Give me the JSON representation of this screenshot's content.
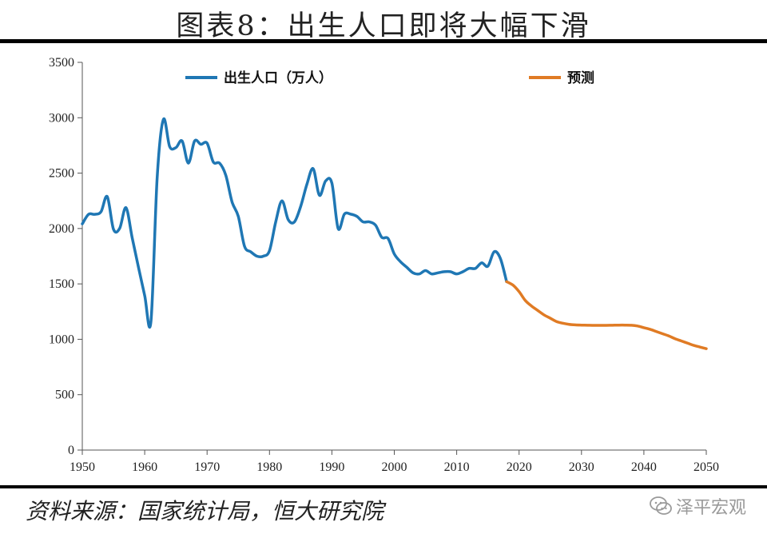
{
  "title": "图表8：出生人口即将大幅下滑",
  "footer": "资料来源：国家统计局，恒大研究院",
  "watermark": "泽平宏观",
  "colors": {
    "actual": "#1f77b4",
    "forecast": "#e07b24"
  },
  "chart_data": {
    "type": "line",
    "title": "图表8：出生人口即将大幅下滑",
    "xlim": [
      1950,
      2050
    ],
    "ylim": [
      0,
      3500
    ],
    "xticks": [
      1950,
      1960,
      1970,
      1980,
      1990,
      2000,
      2010,
      2020,
      2030,
      2040,
      2050
    ],
    "yticks": [
      0,
      500,
      1000,
      1500,
      2000,
      2500,
      3000,
      3500
    ],
    "grid": false,
    "legend_position": "top",
    "series": [
      {
        "name": "出生人口（万人）",
        "color": "#1f77b4",
        "x": [
          1950,
          1951,
          1952,
          1953,
          1954,
          1955,
          1956,
          1957,
          1958,
          1959,
          1960,
          1961,
          1962,
          1963,
          1964,
          1965,
          1966,
          1967,
          1968,
          1969,
          1970,
          1971,
          1972,
          1973,
          1974,
          1975,
          1976,
          1977,
          1978,
          1979,
          1980,
          1981,
          1982,
          1983,
          1984,
          1985,
          1986,
          1987,
          1988,
          1989,
          1990,
          1991,
          1992,
          1993,
          1994,
          1995,
          1996,
          1997,
          1998,
          1999,
          2000,
          2001,
          2002,
          2003,
          2004,
          2005,
          2006,
          2007,
          2008,
          2009,
          2010,
          2011,
          2012,
          2013,
          2014,
          2015,
          2016,
          2017,
          2018
        ],
        "y": [
          2042,
          2128,
          2128,
          2151,
          2288,
          1993,
          2003,
          2188,
          1915,
          1651,
          1395,
          1160,
          2460,
          2985,
          2740,
          2730,
          2790,
          2590,
          2790,
          2760,
          2770,
          2600,
          2590,
          2480,
          2240,
          2110,
          1840,
          1790,
          1750,
          1750,
          1800,
          2060,
          2250,
          2080,
          2060,
          2200,
          2400,
          2540,
          2300,
          2430,
          2410,
          2000,
          2130,
          2130,
          2110,
          2060,
          2060,
          2030,
          1920,
          1910,
          1770,
          1700,
          1650,
          1600,
          1590,
          1620,
          1590,
          1600,
          1610,
          1610,
          1590,
          1610,
          1640,
          1640,
          1690,
          1660,
          1790,
          1730,
          1520
        ]
      },
      {
        "name": "预测",
        "color": "#e07b24",
        "x": [
          2018,
          2019,
          2020,
          2021,
          2022,
          2023,
          2024,
          2025,
          2026,
          2027,
          2028,
          2029,
          2030,
          2031,
          2032,
          2033,
          2034,
          2035,
          2036,
          2037,
          2038,
          2039,
          2040,
          2041,
          2042,
          2043,
          2044,
          2045,
          2046,
          2047,
          2048,
          2049,
          2050
        ],
        "y": [
          1520,
          1490,
          1430,
          1350,
          1300,
          1260,
          1220,
          1190,
          1160,
          1145,
          1135,
          1130,
          1128,
          1127,
          1126,
          1126,
          1126,
          1127,
          1128,
          1128,
          1127,
          1120,
          1105,
          1090,
          1070,
          1050,
          1030,
          1005,
          985,
          965,
          945,
          930,
          915
        ]
      }
    ]
  }
}
